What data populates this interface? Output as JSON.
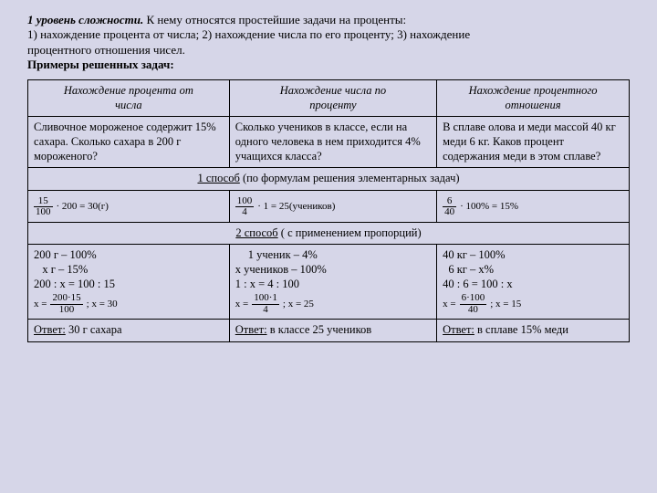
{
  "intro": {
    "level_label": "1 уровень сложности.",
    "level_text": " К нему относятся простейшие задачи на проценты:",
    "line1": "1) нахождение процента от числа; 2) нахождение числа по его проценту; 3) нахождение",
    "line2": "процентного отношения чисел.",
    "examples_label": "Примеры решенных задач:"
  },
  "headers": {
    "h1a": "Нахождение процента от",
    "h1b": "числа",
    "h2a": "Нахождение числа по",
    "h2b": "проценту",
    "h3a": "Нахождение процентного",
    "h3b": "отношения"
  },
  "tasks": {
    "t1": "Сливочное мороженое содержит 15% сахара. Сколько сахара в 200 г мороженого?",
    "t2": "Сколько учеников в классе, если на одного человека в нем приходится 4% учащихся класса?",
    "t3": "В сплаве олова и меди массой 40 кг меди 6 кг. Каков процент содержания меди в этом сплаве?"
  },
  "method1": {
    "label": "1 способ",
    "rest": " (по формулам решения элементарных задач)"
  },
  "method1_formulas": {
    "f1": {
      "num": "15",
      "den": "100",
      "tail": "· 200 = 30(г)"
    },
    "f2": {
      "num": "100",
      "den": "4",
      "tail": "· 1 = 25(учеников)"
    },
    "f3": {
      "num": "6",
      "den": "40",
      "tail": "· 100% = 15%"
    }
  },
  "method2": {
    "label": "2 способ",
    "rest": " ( с применением пропорций)"
  },
  "proportions": {
    "c1": {
      "l1": "200 г – 100%",
      "l2": "   x г – 15%",
      "l3": "200 : x = 100 : 15",
      "xprefix": "x =",
      "frac_num": "200·15",
      "frac_den": "100",
      "r": "; x = 30"
    },
    "c2": {
      "l1": "   1 ученик – 4%",
      "l2": "x учеников – 100%",
      "l3": "1 : x = 4 : 100",
      "xprefix": "x =",
      "frac_num": "100·1",
      "frac_den": "4",
      "r": "; x = 25"
    },
    "c3": {
      "l1": "40 кг – 100%",
      "l2": "  6 кг – x%",
      "l3": "40 : 6 = 100 : x",
      "xprefix": "x =",
      "frac_num": "6·100",
      "frac_den": "40",
      "r": "; x = 15"
    }
  },
  "answers": {
    "label": "Ответ:",
    "a1": " 30 г сахара",
    "a2": " в классе 25 учеников",
    "a3": " в сплаве 15% меди"
  }
}
